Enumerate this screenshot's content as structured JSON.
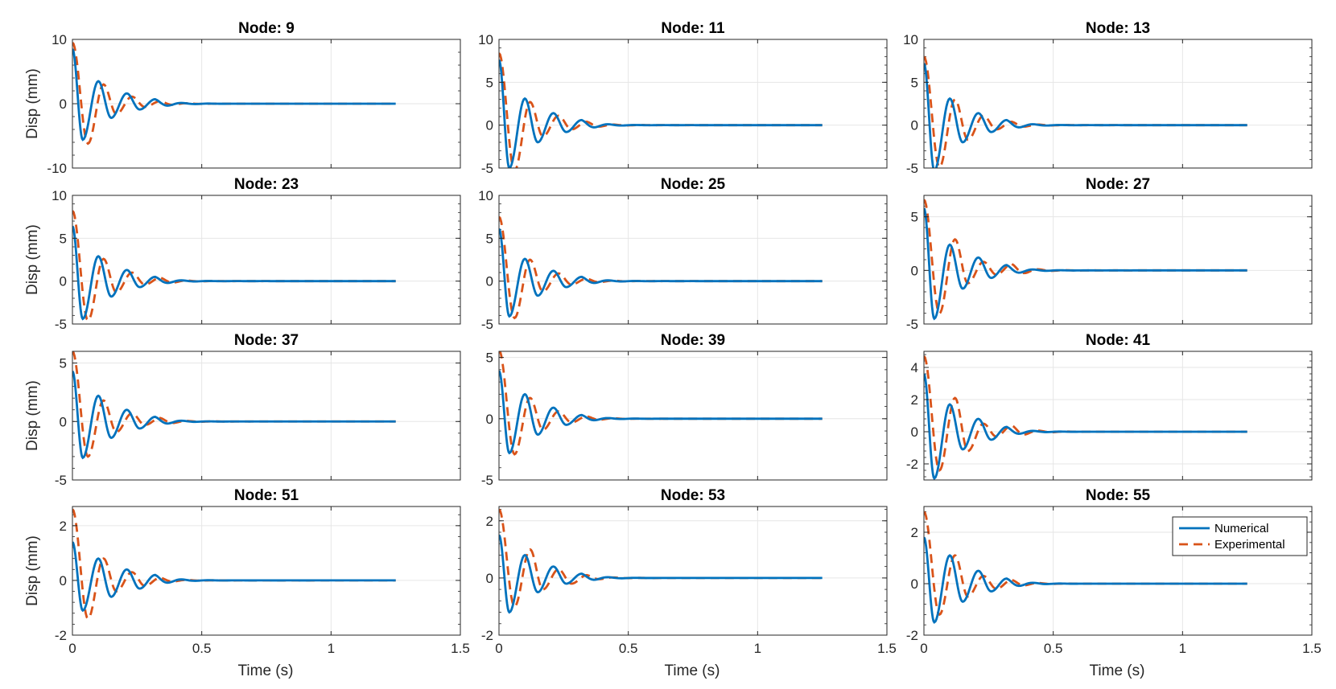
{
  "figure": {
    "xlabel": "Time (s)",
    "ylabel": "Disp (mm)",
    "legend": {
      "placement": "top-right",
      "items": [
        "Numerical",
        "Experimental"
      ]
    },
    "colors": {
      "numerical": "#0072BD",
      "experimental": "#D95319",
      "grid": "#e6e6e6",
      "axis": "#262626"
    }
  },
  "chart_data": [
    {
      "type": "line",
      "title": "Node: 9",
      "xlim": [
        0,
        1.5
      ],
      "ylim": [
        -10,
        10
      ],
      "xticks": [
        0,
        0.5,
        1,
        1.5
      ],
      "yticks": [
        -10,
        0,
        10
      ],
      "x_end": 1.25,
      "grid": true,
      "series": [
        {
          "name": "Numerical",
          "peaks": [
            [
              0,
              8.5
            ],
            [
              0.04,
              -5.6
            ],
            [
              0.1,
              3.5
            ],
            [
              0.15,
              -2.2
            ],
            [
              0.21,
              1.6
            ],
            [
              0.26,
              -0.9
            ],
            [
              0.32,
              0.7
            ]
          ],
          "final": 0
        },
        {
          "name": "Experimental",
          "peaks": [
            [
              0,
              9.5
            ],
            [
              0.06,
              -6.2
            ],
            [
              0.12,
              3.0
            ],
            [
              0.17,
              -1.6
            ],
            [
              0.23,
              1.1
            ],
            [
              0.28,
              -0.5
            ],
            [
              0.34,
              0.4
            ]
          ],
          "final": 0
        }
      ]
    },
    {
      "type": "line",
      "title": "Node: 11",
      "xlim": [
        0,
        1.5
      ],
      "ylim": [
        -5,
        10
      ],
      "xticks": [
        0,
        0.5,
        1,
        1.5
      ],
      "yticks": [
        -5,
        0,
        5,
        10
      ],
      "x_end": 1.25,
      "grid": true,
      "series": [
        {
          "name": "Numerical",
          "peaks": [
            [
              0,
              7.6
            ],
            [
              0.04,
              -5.0
            ],
            [
              0.1,
              3.1
            ],
            [
              0.15,
              -2.0
            ],
            [
              0.21,
              1.4
            ],
            [
              0.26,
              -0.8
            ],
            [
              0.32,
              0.6
            ]
          ],
          "final": 0
        },
        {
          "name": "Experimental",
          "peaks": [
            [
              0,
              8.4
            ],
            [
              0.06,
              -5.3
            ],
            [
              0.12,
              2.7
            ],
            [
              0.17,
              -1.3
            ],
            [
              0.23,
              1.1
            ],
            [
              0.28,
              -0.5
            ],
            [
              0.34,
              0.4
            ]
          ],
          "final": 0
        }
      ]
    },
    {
      "type": "line",
      "title": "Node: 13",
      "xlim": [
        0,
        1.5
      ],
      "ylim": [
        -5,
        10
      ],
      "xticks": [
        0,
        0.5,
        1,
        1.5
      ],
      "yticks": [
        -5,
        0,
        5,
        10
      ],
      "x_end": 1.25,
      "grid": true,
      "series": [
        {
          "name": "Numerical",
          "peaks": [
            [
              0,
              7.2
            ],
            [
              0.04,
              -5.3
            ],
            [
              0.1,
              3.1
            ],
            [
              0.15,
              -2.0
            ],
            [
              0.21,
              1.4
            ],
            [
              0.26,
              -0.8
            ],
            [
              0.32,
              0.6
            ]
          ],
          "final": 0
        },
        {
          "name": "Experimental",
          "peaks": [
            [
              0,
              8.0
            ],
            [
              0.06,
              -4.9
            ],
            [
              0.12,
              3.0
            ],
            [
              0.17,
              -1.7
            ],
            [
              0.23,
              1.1
            ],
            [
              0.28,
              -0.5
            ],
            [
              0.34,
              0.4
            ]
          ],
          "final": 0
        }
      ]
    },
    {
      "type": "line",
      "title": "Node: 23",
      "xlim": [
        0,
        1.5
      ],
      "ylim": [
        -5,
        10
      ],
      "xticks": [
        0,
        0.5,
        1,
        1.5
      ],
      "yticks": [
        -5,
        0,
        5,
        10
      ],
      "x_end": 1.25,
      "grid": true,
      "series": [
        {
          "name": "Numerical",
          "peaks": [
            [
              0,
              6.4
            ],
            [
              0.04,
              -4.4
            ],
            [
              0.1,
              2.9
            ],
            [
              0.15,
              -1.8
            ],
            [
              0.21,
              1.3
            ],
            [
              0.26,
              -0.7
            ],
            [
              0.32,
              0.5
            ]
          ],
          "final": 0
        },
        {
          "name": "Experimental",
          "peaks": [
            [
              0,
              8.2
            ],
            [
              0.06,
              -4.6
            ],
            [
              0.12,
              2.6
            ],
            [
              0.17,
              -1.3
            ],
            [
              0.23,
              1.0
            ],
            [
              0.28,
              -0.4
            ],
            [
              0.34,
              0.4
            ]
          ],
          "final": 0
        }
      ]
    },
    {
      "type": "line",
      "title": "Node: 25",
      "xlim": [
        0,
        1.5
      ],
      "ylim": [
        -5,
        10
      ],
      "xticks": [
        0,
        0.5,
        1,
        1.5
      ],
      "yticks": [
        -5,
        0,
        5,
        10
      ],
      "x_end": 1.25,
      "grid": true,
      "series": [
        {
          "name": "Numerical",
          "peaks": [
            [
              0,
              6.1
            ],
            [
              0.04,
              -4.1
            ],
            [
              0.1,
              2.6
            ],
            [
              0.15,
              -1.7
            ],
            [
              0.21,
              1.2
            ],
            [
              0.26,
              -0.7
            ],
            [
              0.32,
              0.5
            ]
          ],
          "final": 0
        },
        {
          "name": "Experimental",
          "peaks": [
            [
              0,
              7.5
            ],
            [
              0.06,
              -4.3
            ],
            [
              0.12,
              2.5
            ],
            [
              0.17,
              -1.2
            ],
            [
              0.23,
              0.9
            ],
            [
              0.28,
              -0.4
            ],
            [
              0.34,
              0.3
            ]
          ],
          "final": 0
        }
      ]
    },
    {
      "type": "line",
      "title": "Node: 27",
      "xlim": [
        0,
        1.5
      ],
      "ylim": [
        -5,
        7
      ],
      "xticks": [
        0,
        0.5,
        1,
        1.5
      ],
      "yticks": [
        -5,
        0,
        5
      ],
      "x_end": 1.25,
      "grid": true,
      "series": [
        {
          "name": "Numerical",
          "peaks": [
            [
              0,
              5.8
            ],
            [
              0.04,
              -4.5
            ],
            [
              0.1,
              2.4
            ],
            [
              0.15,
              -1.7
            ],
            [
              0.21,
              1.2
            ],
            [
              0.26,
              -0.7
            ],
            [
              0.32,
              0.5
            ]
          ],
          "final": 0
        },
        {
          "name": "Experimental",
          "peaks": [
            [
              0,
              6.6
            ],
            [
              0.06,
              -4.0
            ],
            [
              0.12,
              2.9
            ],
            [
              0.17,
              -1.2
            ],
            [
              0.23,
              0.8
            ],
            [
              0.28,
              -0.4
            ],
            [
              0.34,
              0.6
            ]
          ],
          "final": 0
        }
      ]
    },
    {
      "type": "line",
      "title": "Node: 37",
      "xlim": [
        0,
        1.5
      ],
      "ylim": [
        -5,
        6
      ],
      "xticks": [
        0,
        0.5,
        1,
        1.5
      ],
      "yticks": [
        -5,
        0,
        5
      ],
      "x_end": 1.25,
      "grid": true,
      "series": [
        {
          "name": "Numerical",
          "peaks": [
            [
              0,
              4.3
            ],
            [
              0.04,
              -3.1
            ],
            [
              0.1,
              2.2
            ],
            [
              0.15,
              -1.4
            ],
            [
              0.21,
              1.0
            ],
            [
              0.26,
              -0.6
            ],
            [
              0.32,
              0.4
            ]
          ],
          "final": 0
        },
        {
          "name": "Experimental",
          "peaks": [
            [
              0,
              6.0
            ],
            [
              0.06,
              -3.0
            ],
            [
              0.12,
              1.8
            ],
            [
              0.17,
              -0.9
            ],
            [
              0.23,
              0.7
            ],
            [
              0.28,
              -0.3
            ],
            [
              0.34,
              0.3
            ]
          ],
          "final": 0
        }
      ]
    },
    {
      "type": "line",
      "title": "Node: 39",
      "xlim": [
        0,
        1.5
      ],
      "ylim": [
        -5,
        5.5
      ],
      "xticks": [
        0,
        0.5,
        1,
        1.5
      ],
      "yticks": [
        -5,
        0,
        5
      ],
      "x_end": 1.25,
      "grid": true,
      "series": [
        {
          "name": "Numerical",
          "peaks": [
            [
              0,
              3.9
            ],
            [
              0.04,
              -2.8
            ],
            [
              0.1,
              2.0
            ],
            [
              0.15,
              -1.3
            ],
            [
              0.21,
              0.9
            ],
            [
              0.26,
              -0.5
            ],
            [
              0.32,
              0.3
            ]
          ],
          "final": 0
        },
        {
          "name": "Experimental",
          "peaks": [
            [
              0,
              5.6
            ],
            [
              0.06,
              -2.9
            ],
            [
              0.12,
              1.7
            ],
            [
              0.17,
              -0.9
            ],
            [
              0.23,
              0.6
            ],
            [
              0.28,
              -0.3
            ],
            [
              0.34,
              0.2
            ]
          ],
          "final": 0
        }
      ]
    },
    {
      "type": "line",
      "title": "Node: 41",
      "xlim": [
        0,
        1.5
      ],
      "ylim": [
        -3,
        5
      ],
      "xticks": [
        0,
        0.5,
        1,
        1.5
      ],
      "yticks": [
        -2,
        0,
        2,
        4
      ],
      "x_end": 1.25,
      "grid": true,
      "series": [
        {
          "name": "Numerical",
          "peaks": [
            [
              0,
              3.6
            ],
            [
              0.04,
              -2.9
            ],
            [
              0.1,
              1.7
            ],
            [
              0.15,
              -1.1
            ],
            [
              0.21,
              0.8
            ],
            [
              0.26,
              -0.5
            ],
            [
              0.32,
              0.3
            ]
          ],
          "final": 0
        },
        {
          "name": "Experimental",
          "peaks": [
            [
              0,
              4.7
            ],
            [
              0.06,
              -2.4
            ],
            [
              0.12,
              2.1
            ],
            [
              0.17,
              -1.2
            ],
            [
              0.23,
              0.5
            ],
            [
              0.28,
              -0.3
            ],
            [
              0.34,
              0.4
            ]
          ],
          "final": 0
        }
      ]
    },
    {
      "type": "line",
      "title": "Node: 51",
      "xlim": [
        0,
        1.5
      ],
      "ylim": [
        -2,
        2.7
      ],
      "xticks": [
        0,
        0.5,
        1,
        1.5
      ],
      "yticks": [
        -2,
        0,
        2
      ],
      "x_end": 1.25,
      "grid": true,
      "series": [
        {
          "name": "Numerical",
          "peaks": [
            [
              0,
              1.4
            ],
            [
              0.04,
              -1.1
            ],
            [
              0.1,
              0.8
            ],
            [
              0.15,
              -0.6
            ],
            [
              0.21,
              0.4
            ],
            [
              0.26,
              -0.3
            ],
            [
              0.32,
              0.2
            ]
          ],
          "final": 0
        },
        {
          "name": "Experimental",
          "peaks": [
            [
              0,
              2.6
            ],
            [
              0.06,
              -1.4
            ],
            [
              0.12,
              0.8
            ],
            [
              0.17,
              -0.4
            ],
            [
              0.23,
              0.3
            ],
            [
              0.28,
              -0.2
            ],
            [
              0.34,
              0.1
            ]
          ],
          "final": 0
        }
      ]
    },
    {
      "type": "line",
      "title": "Node: 53",
      "xlim": [
        0,
        1.5
      ],
      "ylim": [
        -2,
        2.5
      ],
      "xticks": [
        0,
        0.5,
        1,
        1.5
      ],
      "yticks": [
        -2,
        0,
        2
      ],
      "x_end": 1.25,
      "grid": true,
      "series": [
        {
          "name": "Numerical",
          "peaks": [
            [
              0,
              1.5
            ],
            [
              0.04,
              -1.2
            ],
            [
              0.1,
              0.8
            ],
            [
              0.15,
              -0.5
            ],
            [
              0.21,
              0.4
            ],
            [
              0.26,
              -0.2
            ],
            [
              0.32,
              0.15
            ]
          ],
          "final": 0
        },
        {
          "name": "Experimental",
          "peaks": [
            [
              0,
              2.4
            ],
            [
              0.06,
              -1.0
            ],
            [
              0.12,
              1.0
            ],
            [
              0.17,
              -0.4
            ],
            [
              0.23,
              0.3
            ],
            [
              0.28,
              -0.2
            ],
            [
              0.34,
              0.1
            ]
          ],
          "final": 0
        }
      ]
    },
    {
      "type": "line",
      "title": "Node: 55",
      "xlim": [
        0,
        1.5
      ],
      "ylim": [
        -2,
        3
      ],
      "xticks": [
        0,
        0.5,
        1,
        1.5
      ],
      "yticks": [
        -2,
        0,
        2
      ],
      "x_end": 1.25,
      "grid": true,
      "series": [
        {
          "name": "Numerical",
          "peaks": [
            [
              0,
              1.8
            ],
            [
              0.04,
              -1.5
            ],
            [
              0.1,
              1.1
            ],
            [
              0.15,
              -0.7
            ],
            [
              0.21,
              0.5
            ],
            [
              0.26,
              -0.3
            ],
            [
              0.32,
              0.2
            ]
          ],
          "final": 0
        },
        {
          "name": "Experimental",
          "peaks": [
            [
              0,
              2.8
            ],
            [
              0.06,
              -1.2
            ],
            [
              0.12,
              1.1
            ],
            [
              0.17,
              -0.5
            ],
            [
              0.23,
              0.3
            ],
            [
              0.28,
              -0.2
            ],
            [
              0.34,
              0.15
            ]
          ],
          "final": 0
        }
      ]
    }
  ]
}
